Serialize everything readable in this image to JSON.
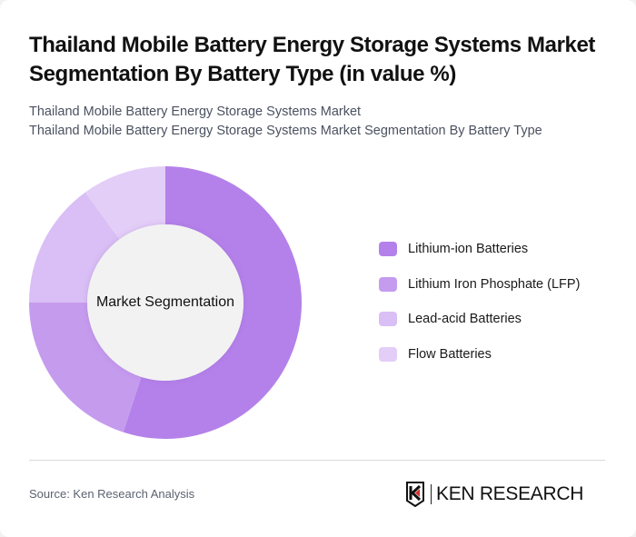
{
  "header": {
    "title": "Thailand Mobile Battery Energy Storage Systems Market Segmentation By Battery Type (in value %)",
    "subtitle_lines": [
      "Thailand Mobile Battery Energy Storage Systems Market",
      "Thailand Mobile Battery Energy Storage Systems Market Segmentation By Battery Type"
    ]
  },
  "chart": {
    "center_label": "Market Segmentation"
  },
  "legend": {
    "items": [
      {
        "label": "Lithium-ion Batteries",
        "color": "#b481ea"
      },
      {
        "label": "Lithium Iron Phosphate (LFP)",
        "color": "#c59bee"
      },
      {
        "label": "Lead-acid Batteries",
        "color": "#d9bff5"
      },
      {
        "label": "Flow Batteries",
        "color": "#e3cef7"
      }
    ]
  },
  "footer": {
    "source": "Source: Ken Research Analysis",
    "logo_text": "KEN RESEARCH",
    "logo_icon": "ken-research-shield-icon"
  },
  "chart_data": {
    "type": "pie",
    "subtype": "donut",
    "title": "Thailand Mobile Battery Energy Storage Systems Market Segmentation By Battery Type (in value %)",
    "center_label": "Market Segmentation",
    "categories": [
      "Lithium-ion Batteries",
      "Lithium Iron Phosphate (LFP)",
      "Lead-acid Batteries",
      "Flow Batteries"
    ],
    "values": [
      55,
      20,
      15,
      10
    ],
    "unit": "%",
    "colors": [
      "#b481ea",
      "#c59bee",
      "#d9bff5",
      "#e3cef7"
    ],
    "start_angle": "12 o'clock, clockwise",
    "legend_position": "right"
  }
}
